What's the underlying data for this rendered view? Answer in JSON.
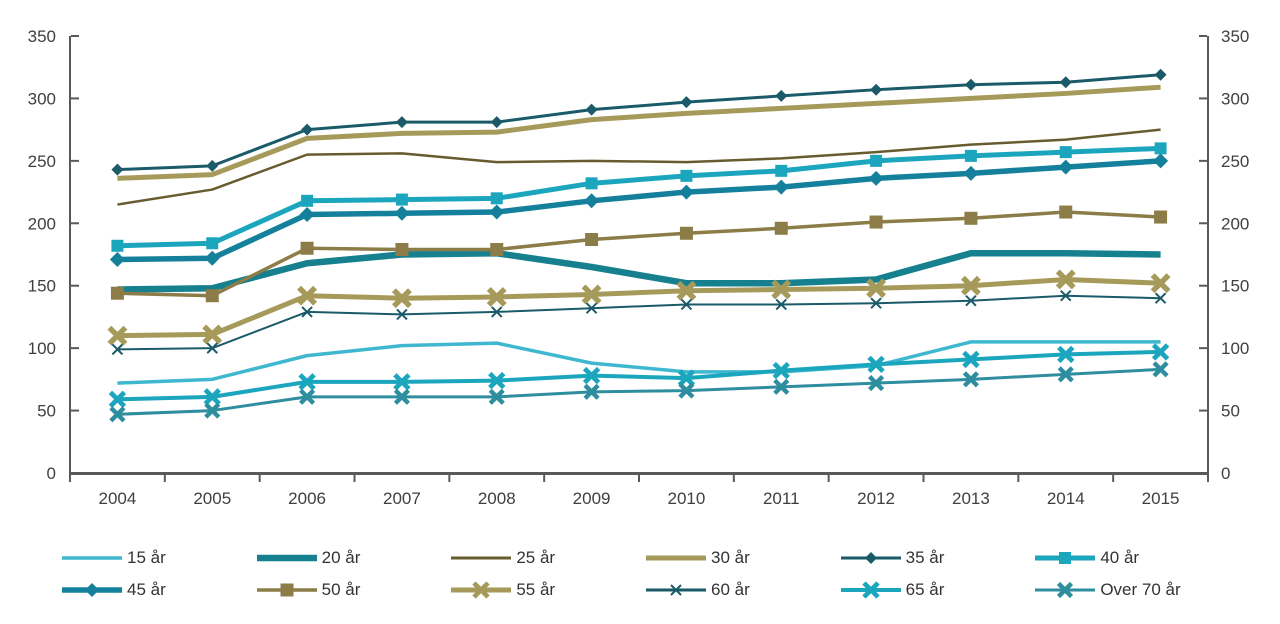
{
  "chart_data": {
    "type": "line",
    "title": "",
    "xlabel": "",
    "ylabel": "",
    "grid": false,
    "legend_position": "bottom",
    "ylim": [
      0,
      350
    ],
    "yticks": [
      0,
      50,
      100,
      150,
      200,
      250,
      300,
      350
    ],
    "axis_color": "#595959",
    "tick_label_color": "#3f3f3f",
    "x": [
      "2004",
      "2005",
      "2006",
      "2007",
      "2008",
      "2009",
      "2010",
      "2011",
      "2012",
      "2013",
      "2014",
      "2015"
    ],
    "series": [
      {
        "name": "15 år",
        "color": "#3FB8CF",
        "width": 3.5,
        "marker": "none",
        "marker_size": 0,
        "values": [
          72,
          75,
          94,
          102,
          104,
          88,
          81,
          81,
          86,
          105,
          105,
          105
        ]
      },
      {
        "name": "20 år",
        "color": "#16808F",
        "width": 6.5,
        "marker": "none",
        "marker_size": 0,
        "values": [
          147,
          148,
          168,
          175,
          176,
          165,
          152,
          152,
          155,
          176,
          176,
          175
        ]
      },
      {
        "name": "25 år",
        "color": "#675C30",
        "width": 2.5,
        "marker": "none",
        "marker_size": 0,
        "values": [
          215,
          227,
          255,
          256,
          249,
          250,
          249,
          252,
          257,
          263,
          267,
          275
        ]
      },
      {
        "name": "30 år",
        "color": "#A69A5B",
        "width": 5,
        "marker": "none",
        "marker_size": 0,
        "values": [
          236,
          239,
          268,
          272,
          273,
          283,
          288,
          292,
          296,
          300,
          304,
          309
        ]
      },
      {
        "name": "35 år",
        "color": "#1A5A69",
        "width": 3,
        "marker": "diamond",
        "marker_size": 6,
        "values": [
          243,
          246,
          275,
          281,
          281,
          291,
          297,
          302,
          307,
          311,
          313,
          319
        ]
      },
      {
        "name": "40 år",
        "color": "#1BA6BE",
        "width": 5,
        "marker": "square",
        "marker_size": 6,
        "values": [
          182,
          184,
          218,
          219,
          220,
          232,
          238,
          242,
          250,
          254,
          257,
          260
        ]
      },
      {
        "name": "45 år",
        "color": "#14809B",
        "width": 5.5,
        "marker": "diamond",
        "marker_size": 7.5,
        "values": [
          171,
          172,
          207,
          208,
          209,
          218,
          225,
          229,
          236,
          240,
          245,
          250
        ]
      },
      {
        "name": "50 år",
        "color": "#8B7C48",
        "width": 3.5,
        "marker": "square",
        "marker_size": 6.5,
        "values": [
          144,
          142,
          180,
          179,
          179,
          187,
          192,
          196,
          201,
          204,
          209,
          205
        ]
      },
      {
        "name": "55 år",
        "color": "#A69A5B",
        "width": 5,
        "marker": "xbold",
        "marker_size": 8,
        "values": [
          110,
          111,
          142,
          140,
          141,
          143,
          146,
          147,
          148,
          150,
          155,
          152
        ]
      },
      {
        "name": "60 år",
        "color": "#1A5A69",
        "width": 2,
        "marker": "xthin",
        "marker_size": 5,
        "values": [
          99,
          100,
          129,
          127,
          129,
          132,
          135,
          135,
          136,
          138,
          142,
          140
        ]
      },
      {
        "name": "65 år",
        "color": "#1BA6BE",
        "width": 4,
        "marker": "xbold",
        "marker_size": 7,
        "values": [
          59,
          61,
          73,
          73,
          74,
          78,
          76,
          82,
          87,
          91,
          95,
          97
        ]
      },
      {
        "name": "Over 70 år",
        "color": "#2E8D9E",
        "width": 3,
        "marker": "xbold",
        "marker_size": 6.5,
        "values": [
          47,
          50,
          61,
          61,
          61,
          65,
          66,
          69,
          72,
          75,
          79,
          83
        ]
      }
    ]
  }
}
